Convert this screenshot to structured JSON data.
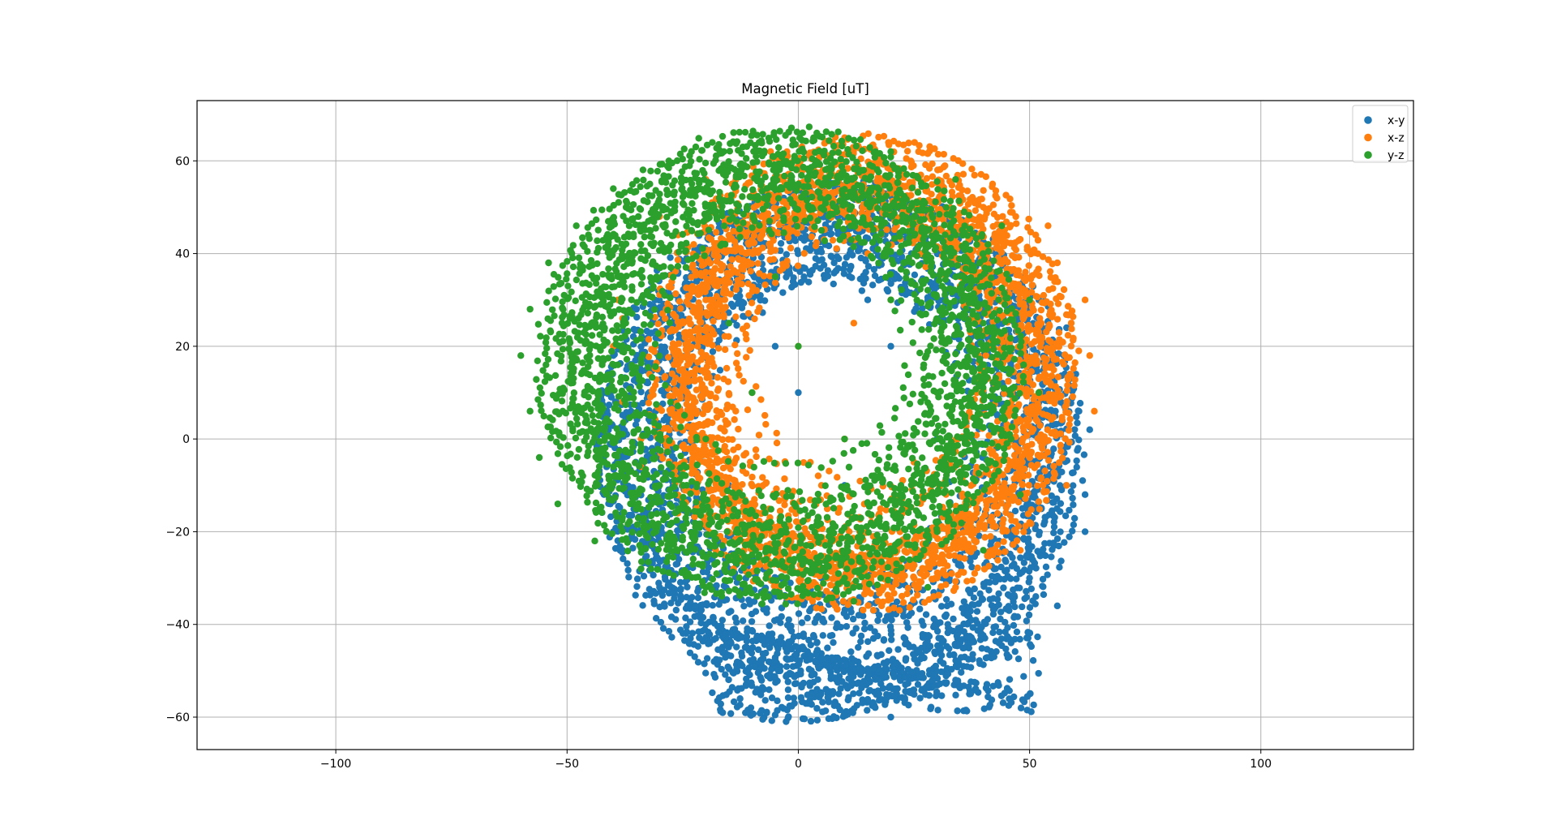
{
  "chart_data": {
    "type": "scatter",
    "title": "Magnetic Field [uT]",
    "xlabel": "",
    "ylabel": "",
    "xlim": [
      -130,
      133
    ],
    "ylim": [
      -67,
      73
    ],
    "x_ticks": [
      -100,
      -50,
      0,
      50,
      100
    ],
    "x_tick_labels": [
      "−100",
      "−50",
      "0",
      "50",
      "100"
    ],
    "y_ticks": [
      -60,
      -40,
      -20,
      0,
      20,
      40,
      60
    ],
    "y_tick_labels": [
      "−60",
      "−40",
      "−20",
      "0",
      "20",
      "40",
      "60"
    ],
    "grid": true,
    "legend_position": "top-right",
    "series": [
      {
        "name": "x-y",
        "color": "#1f77b4",
        "shape": "ellipse",
        "center": [
          9,
          -2
        ],
        "radii": [
          53,
          58
        ],
        "points_note_free": true,
        "points": [
          [
            -44,
            0
          ],
          [
            -43,
            8
          ],
          [
            -42,
            -12
          ],
          [
            -40,
            18
          ],
          [
            -38,
            -24
          ],
          [
            -35,
            28
          ],
          [
            -30,
            -32
          ],
          [
            -26,
            36
          ],
          [
            -20,
            -40
          ],
          [
            -14,
            45
          ],
          [
            -8,
            -48
          ],
          [
            0,
            50
          ],
          [
            6,
            -54
          ],
          [
            14,
            52
          ],
          [
            20,
            -60
          ],
          [
            28,
            48
          ],
          [
            34,
            -52
          ],
          [
            40,
            40
          ],
          [
            46,
            -44
          ],
          [
            52,
            30
          ],
          [
            56,
            -36
          ],
          [
            60,
            14
          ],
          [
            62,
            -20
          ],
          [
            63,
            2
          ],
          [
            62,
            -12
          ],
          [
            58,
            24
          ],
          [
            50,
            -30
          ],
          [
            42,
            36
          ],
          [
            30,
            -40
          ],
          [
            18,
            44
          ],
          [
            4,
            -44
          ],
          [
            -10,
            40
          ],
          [
            -24,
            -36
          ],
          [
            -34,
            30
          ],
          [
            -40,
            -20
          ],
          [
            -42,
            10
          ],
          [
            0,
            10
          ],
          [
            10,
            -10
          ],
          [
            20,
            20
          ],
          [
            -10,
            -20
          ],
          [
            30,
            0
          ],
          [
            -20,
            10
          ],
          [
            15,
            30
          ],
          [
            5,
            -30
          ],
          [
            25,
            -20
          ],
          [
            -5,
            20
          ],
          [
            40,
            10
          ],
          [
            -30,
            0
          ],
          [
            35,
            -25
          ],
          [
            -15,
            -10
          ]
        ]
      },
      {
        "name": "x-z",
        "color": "#ff7f0e",
        "shape": "ellipse",
        "center": [
          14,
          14
        ],
        "radii": [
          47,
          52
        ],
        "points_note_free": true,
        "points": [
          [
            -40,
            20
          ],
          [
            -39,
            30
          ],
          [
            -38,
            8
          ],
          [
            -36,
            40
          ],
          [
            -34,
            -6
          ],
          [
            -30,
            48
          ],
          [
            -26,
            -16
          ],
          [
            -20,
            56
          ],
          [
            -14,
            -28
          ],
          [
            -6,
            62
          ],
          [
            2,
            -32
          ],
          [
            10,
            65
          ],
          [
            18,
            -36
          ],
          [
            26,
            62
          ],
          [
            34,
            -32
          ],
          [
            42,
            55
          ],
          [
            48,
            -24
          ],
          [
            54,
            46
          ],
          [
            58,
            -10
          ],
          [
            62,
            30
          ],
          [
            64,
            6
          ],
          [
            63,
            18
          ],
          [
            56,
            38
          ],
          [
            50,
            -18
          ],
          [
            40,
            50
          ],
          [
            30,
            -30
          ],
          [
            20,
            58
          ],
          [
            8,
            -30
          ],
          [
            -4,
            54
          ],
          [
            -16,
            -22
          ],
          [
            -26,
            44
          ],
          [
            -34,
            0
          ],
          [
            -38,
            26
          ],
          [
            0,
            20
          ],
          [
            10,
            0
          ],
          [
            20,
            30
          ],
          [
            -10,
            10
          ],
          [
            30,
            10
          ],
          [
            -20,
            30
          ],
          [
            15,
            40
          ],
          [
            5,
            -10
          ],
          [
            25,
            -5
          ],
          [
            -5,
            35
          ],
          [
            40,
            20
          ],
          [
            -25,
            15
          ],
          [
            35,
            35
          ],
          [
            -15,
            -5
          ],
          [
            45,
            0
          ],
          [
            12,
            25
          ],
          [
            -8,
            48
          ]
        ]
      },
      {
        "name": "y-z",
        "color": "#2ca02c",
        "shape": "ellipse",
        "center": [
          -4,
          16
        ],
        "radii": [
          53,
          52
        ],
        "points_note_free": true,
        "points": [
          [
            -60,
            18
          ],
          [
            -58,
            6
          ],
          [
            -58,
            28
          ],
          [
            -56,
            -4
          ],
          [
            -54,
            38
          ],
          [
            -52,
            -14
          ],
          [
            -48,
            46
          ],
          [
            -44,
            -22
          ],
          [
            -40,
            54
          ],
          [
            -34,
            -28
          ],
          [
            -28,
            60
          ],
          [
            -20,
            -32
          ],
          [
            -12,
            63
          ],
          [
            -4,
            -34
          ],
          [
            4,
            66
          ],
          [
            12,
            -35
          ],
          [
            20,
            62
          ],
          [
            28,
            -32
          ],
          [
            34,
            56
          ],
          [
            40,
            -24
          ],
          [
            44,
            46
          ],
          [
            48,
            -12
          ],
          [
            50,
            30
          ],
          [
            52,
            10
          ],
          [
            48,
            20
          ],
          [
            46,
            0
          ],
          [
            40,
            40
          ],
          [
            30,
            -20
          ],
          [
            20,
            50
          ],
          [
            10,
            -30
          ],
          [
            0,
            55
          ],
          [
            -10,
            -25
          ],
          [
            -20,
            48
          ],
          [
            -30,
            -10
          ],
          [
            -40,
            30
          ],
          [
            -46,
            5
          ],
          [
            0,
            20
          ],
          [
            10,
            0
          ],
          [
            -10,
            10
          ],
          [
            20,
            30
          ],
          [
            -20,
            0
          ],
          [
            30,
            10
          ],
          [
            -5,
            35
          ],
          [
            15,
            -10
          ],
          [
            25,
            40
          ],
          [
            -15,
            25
          ],
          [
            35,
            -5
          ],
          [
            5,
            45
          ],
          [
            -25,
            -15
          ],
          [
            40,
            25
          ]
        ]
      }
    ]
  }
}
